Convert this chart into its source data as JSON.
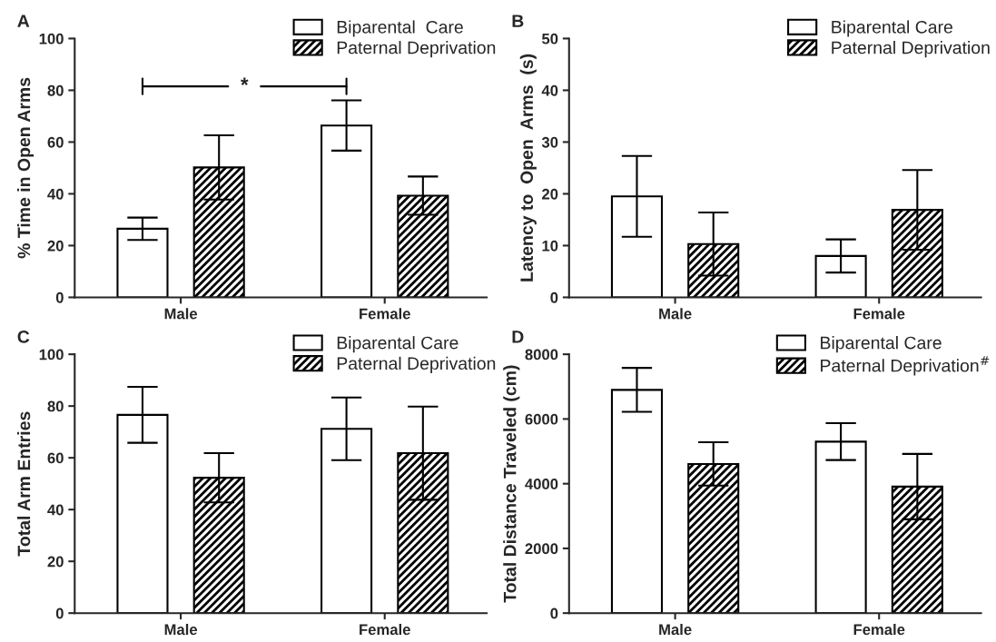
{
  "chart_data": [
    {
      "type": "bar",
      "title": "A",
      "ylabel": "% Time in Open Arms",
      "categories": [
        "Male",
        "Female"
      ],
      "ylim": [
        0,
        100
      ],
      "yticks": [
        0,
        20,
        40,
        60,
        80,
        100
      ],
      "legend": "top right",
      "grid": false,
      "series": [
        {
          "name": "Biparental  Care",
          "color": "#ffffff",
          "values": [
            26.5,
            66.4
          ],
          "errors": [
            4.3,
            9.7
          ]
        },
        {
          "name": "Paternal Deprivation",
          "color": "#000000",
          "values": [
            50.2,
            39.3
          ],
          "errors": [
            12.4,
            7.4
          ]
        }
      ],
      "annotations": [
        "*"
      ]
    },
    {
      "type": "bar",
      "title": "B",
      "ylabel": "Latency to  Open  Arms  (s)",
      "categories": [
        "Male",
        "Female"
      ],
      "ylim": [
        0,
        50
      ],
      "yticks": [
        0,
        10,
        20,
        30,
        40,
        50
      ],
      "legend": "top right",
      "grid": false,
      "series": [
        {
          "name": "Biparental Care",
          "color": "#ffffff",
          "values": [
            19.5,
            8.0
          ],
          "errors": [
            7.8,
            3.2
          ]
        },
        {
          "name": "Paternal Deprivation",
          "color": "#000000",
          "values": [
            10.3,
            16.9
          ],
          "errors": [
            6.1,
            7.7
          ]
        }
      ]
    },
    {
      "type": "bar",
      "title": "C",
      "ylabel": "Total Arm Entries",
      "categories": [
        "Male",
        "Female"
      ],
      "ylim": [
        0,
        100
      ],
      "yticks": [
        0,
        20,
        40,
        60,
        80,
        100
      ],
      "legend": "top right",
      "grid": false,
      "series": [
        {
          "name": "Biparental Care",
          "color": "#ffffff",
          "values": [
            76.6,
            71.2
          ],
          "errors": [
            10.8,
            12.1
          ]
        },
        {
          "name": "Paternal Deprivation",
          "color": "#000000",
          "values": [
            52.3,
            61.8
          ],
          "errors": [
            9.5,
            18.0
          ]
        }
      ]
    },
    {
      "type": "bar",
      "title": "D",
      "ylabel": "Total Distance Traveled (cm)",
      "categories": [
        "Male",
        "Female"
      ],
      "ylim": [
        0,
        8000
      ],
      "yticks": [
        0,
        2000,
        4000,
        6000,
        8000
      ],
      "legend": "top right",
      "grid": false,
      "series": [
        {
          "name": "Biparental Care",
          "color": "#ffffff",
          "values": [
            6900,
            5300
          ],
          "errors": [
            680,
            570
          ]
        },
        {
          "name": "Paternal Deprivation$^{#}$",
          "color": "#000000",
          "values": [
            4610,
            3910
          ],
          "errors": [
            670,
            1010
          ]
        }
      ]
    }
  ]
}
